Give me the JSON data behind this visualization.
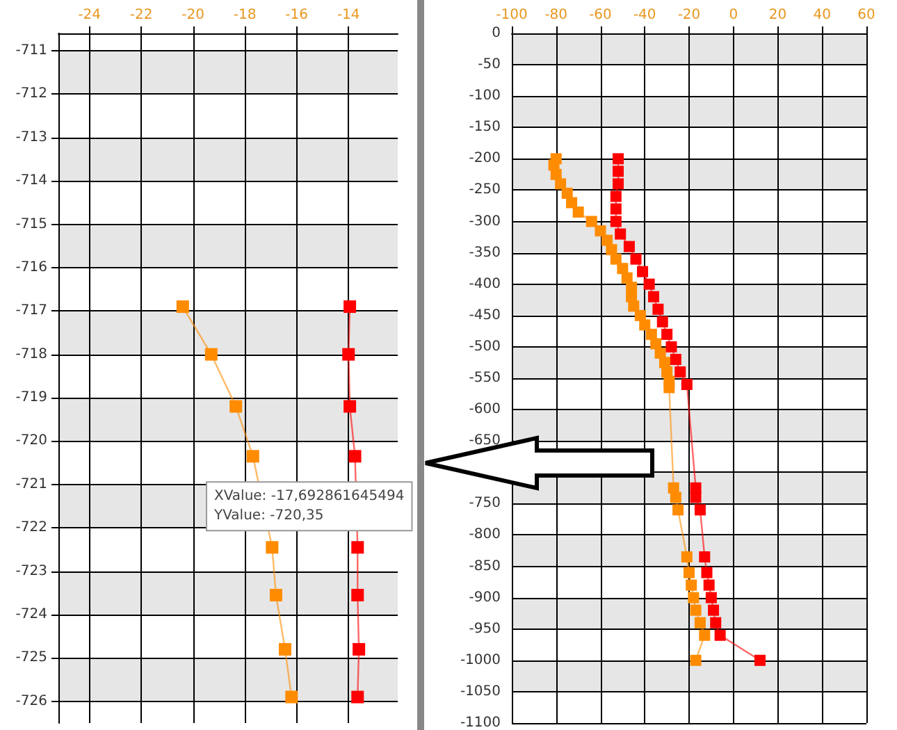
{
  "chart_data": [
    {
      "type": "line",
      "xlim": [
        -25.2,
        -12.1
      ],
      "ylim": [
        -726.5,
        -710.6
      ],
      "xticks": [
        -24,
        -22,
        -20,
        -18,
        -16,
        -14
      ],
      "yticks": [
        -711,
        -712,
        -713,
        -714,
        -715,
        -716,
        -717,
        -718,
        -719,
        -720,
        -721,
        -722,
        -723,
        -724,
        -725,
        -726
      ],
      "grid": true,
      "marker": "square",
      "series": [
        {
          "color": "#ff8c00",
          "x": [
            -20.4,
            -19.3,
            -18.35,
            -17.69,
            -16.95,
            -16.8,
            -16.45,
            -16.2
          ],
          "values": [
            -716.9,
            -718.0,
            -719.2,
            -720.35,
            -722.45,
            -723.55,
            -724.8,
            -725.9
          ]
        },
        {
          "color": "#ff0000",
          "x": [
            -13.95,
            -14.0,
            -13.95,
            -13.75,
            -13.65,
            -13.65,
            -13.6,
            -13.65
          ],
          "values": [
            -716.9,
            -718.0,
            -719.2,
            -720.35,
            -722.45,
            -723.55,
            -724.8,
            -725.9
          ]
        }
      ],
      "annotations": [
        {
          "text": "XValue: -17,692861645494\nYValue: -720,35",
          "x": -17.69,
          "y": -720.35
        }
      ]
    },
    {
      "type": "line",
      "xlim": [
        -100,
        60
      ],
      "ylim": [
        -1100,
        0
      ],
      "xticks": [
        -100,
        -80,
        -60,
        -40,
        -20,
        0,
        20,
        40,
        60
      ],
      "yticks": [
        0,
        -50,
        -100,
        -150,
        -200,
        -250,
        -300,
        -350,
        -400,
        -450,
        -500,
        -550,
        -600,
        -650,
        {
          "value": -700,
          "label": null
        },
        -750,
        -800,
        -850,
        -900,
        -950,
        -1000,
        -1050,
        -1100
      ],
      "grid": true,
      "marker": "square",
      "series": [
        {
          "color": "#ff8c00",
          "x": [
            -80,
            -81,
            -80,
            -78,
            -75,
            -73,
            -70,
            -64,
            -60,
            -57,
            -55,
            -53,
            -50,
            -48,
            -46,
            -46,
            -45,
            -42,
            -40,
            -37,
            -35,
            -33,
            -31,
            -30,
            -29,
            -29,
            -27,
            -26,
            -25,
            -21,
            -20,
            -19,
            -18,
            -17,
            -15,
            -13,
            -17
          ],
          "values": [
            -200,
            -210,
            -225,
            -240,
            -255,
            -270,
            -285,
            -300,
            -315,
            -330,
            -345,
            -360,
            -375,
            -390,
            -405,
            -420,
            -435,
            -450,
            -465,
            -480,
            -495,
            -510,
            -525,
            -540,
            -555,
            -565,
            -725,
            -740,
            -760,
            -835,
            -860,
            -880,
            -900,
            -920,
            -940,
            -960,
            -1000
          ]
        },
        {
          "color": "#ff0000",
          "x": [
            -52,
            -52,
            -52,
            -53,
            -53,
            -53,
            -51,
            -47,
            -44,
            -41,
            -38,
            -36,
            -34,
            -32,
            -30,
            -28,
            -26,
            -24,
            -21,
            -17,
            -17,
            -15,
            -13,
            -12,
            -11,
            -10,
            -9,
            -8,
            -6,
            12
          ],
          "values": [
            -200,
            -220,
            -240,
            -260,
            -280,
            -300,
            -320,
            -340,
            -360,
            -380,
            -400,
            -420,
            -440,
            -460,
            -480,
            -500,
            -520,
            -540,
            -560,
            -725,
            -740,
            -760,
            -835,
            -860,
            -880,
            -900,
            -920,
            -940,
            -960,
            -1000
          ]
        }
      ]
    }
  ]
}
